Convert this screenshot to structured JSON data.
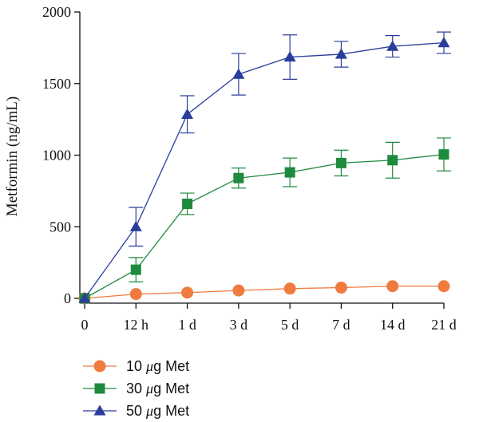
{
  "chart_data": {
    "type": "line",
    "title": "",
    "xlabel": "",
    "ylabel": "Metformin (ng/mL)",
    "categories": [
      "0",
      "12 h",
      "1 d",
      "3 d",
      "5 d",
      "7 d",
      "14 d",
      "21 d"
    ],
    "ylim": [
      0,
      2000
    ],
    "yticks": [
      "0",
      "500",
      "1000",
      "1500",
      "2000"
    ],
    "grid": false,
    "legend_position": "bottom-left",
    "series": [
      {
        "name": "10 μg Met",
        "legend_prefix": "10 ",
        "legend_unit": "μ",
        "legend_suffix": "g Met",
        "marker": "circle",
        "color": "#F07B3F",
        "values": [
          0,
          30,
          40,
          55,
          68,
          75,
          85,
          85
        ],
        "errors": [
          0,
          0,
          0,
          0,
          0,
          0,
          0,
          0
        ]
      },
      {
        "name": "30 μg Met",
        "legend_prefix": "30 ",
        "legend_unit": "μ",
        "legend_suffix": "g Met",
        "marker": "square",
        "color": "#1E8A3E",
        "values": [
          0,
          200,
          660,
          840,
          880,
          945,
          965,
          1005
        ],
        "errors": [
          0,
          85,
          75,
          70,
          100,
          90,
          125,
          115
        ]
      },
      {
        "name": "50 μg Met",
        "legend_prefix": "50 ",
        "legend_unit": "μ",
        "legend_suffix": "g Met",
        "marker": "triangle",
        "color": "#2A3D9B",
        "values": [
          0,
          500,
          1285,
          1565,
          1685,
          1705,
          1760,
          1785
        ],
        "errors": [
          0,
          135,
          130,
          145,
          155,
          90,
          75,
          75
        ]
      }
    ]
  }
}
